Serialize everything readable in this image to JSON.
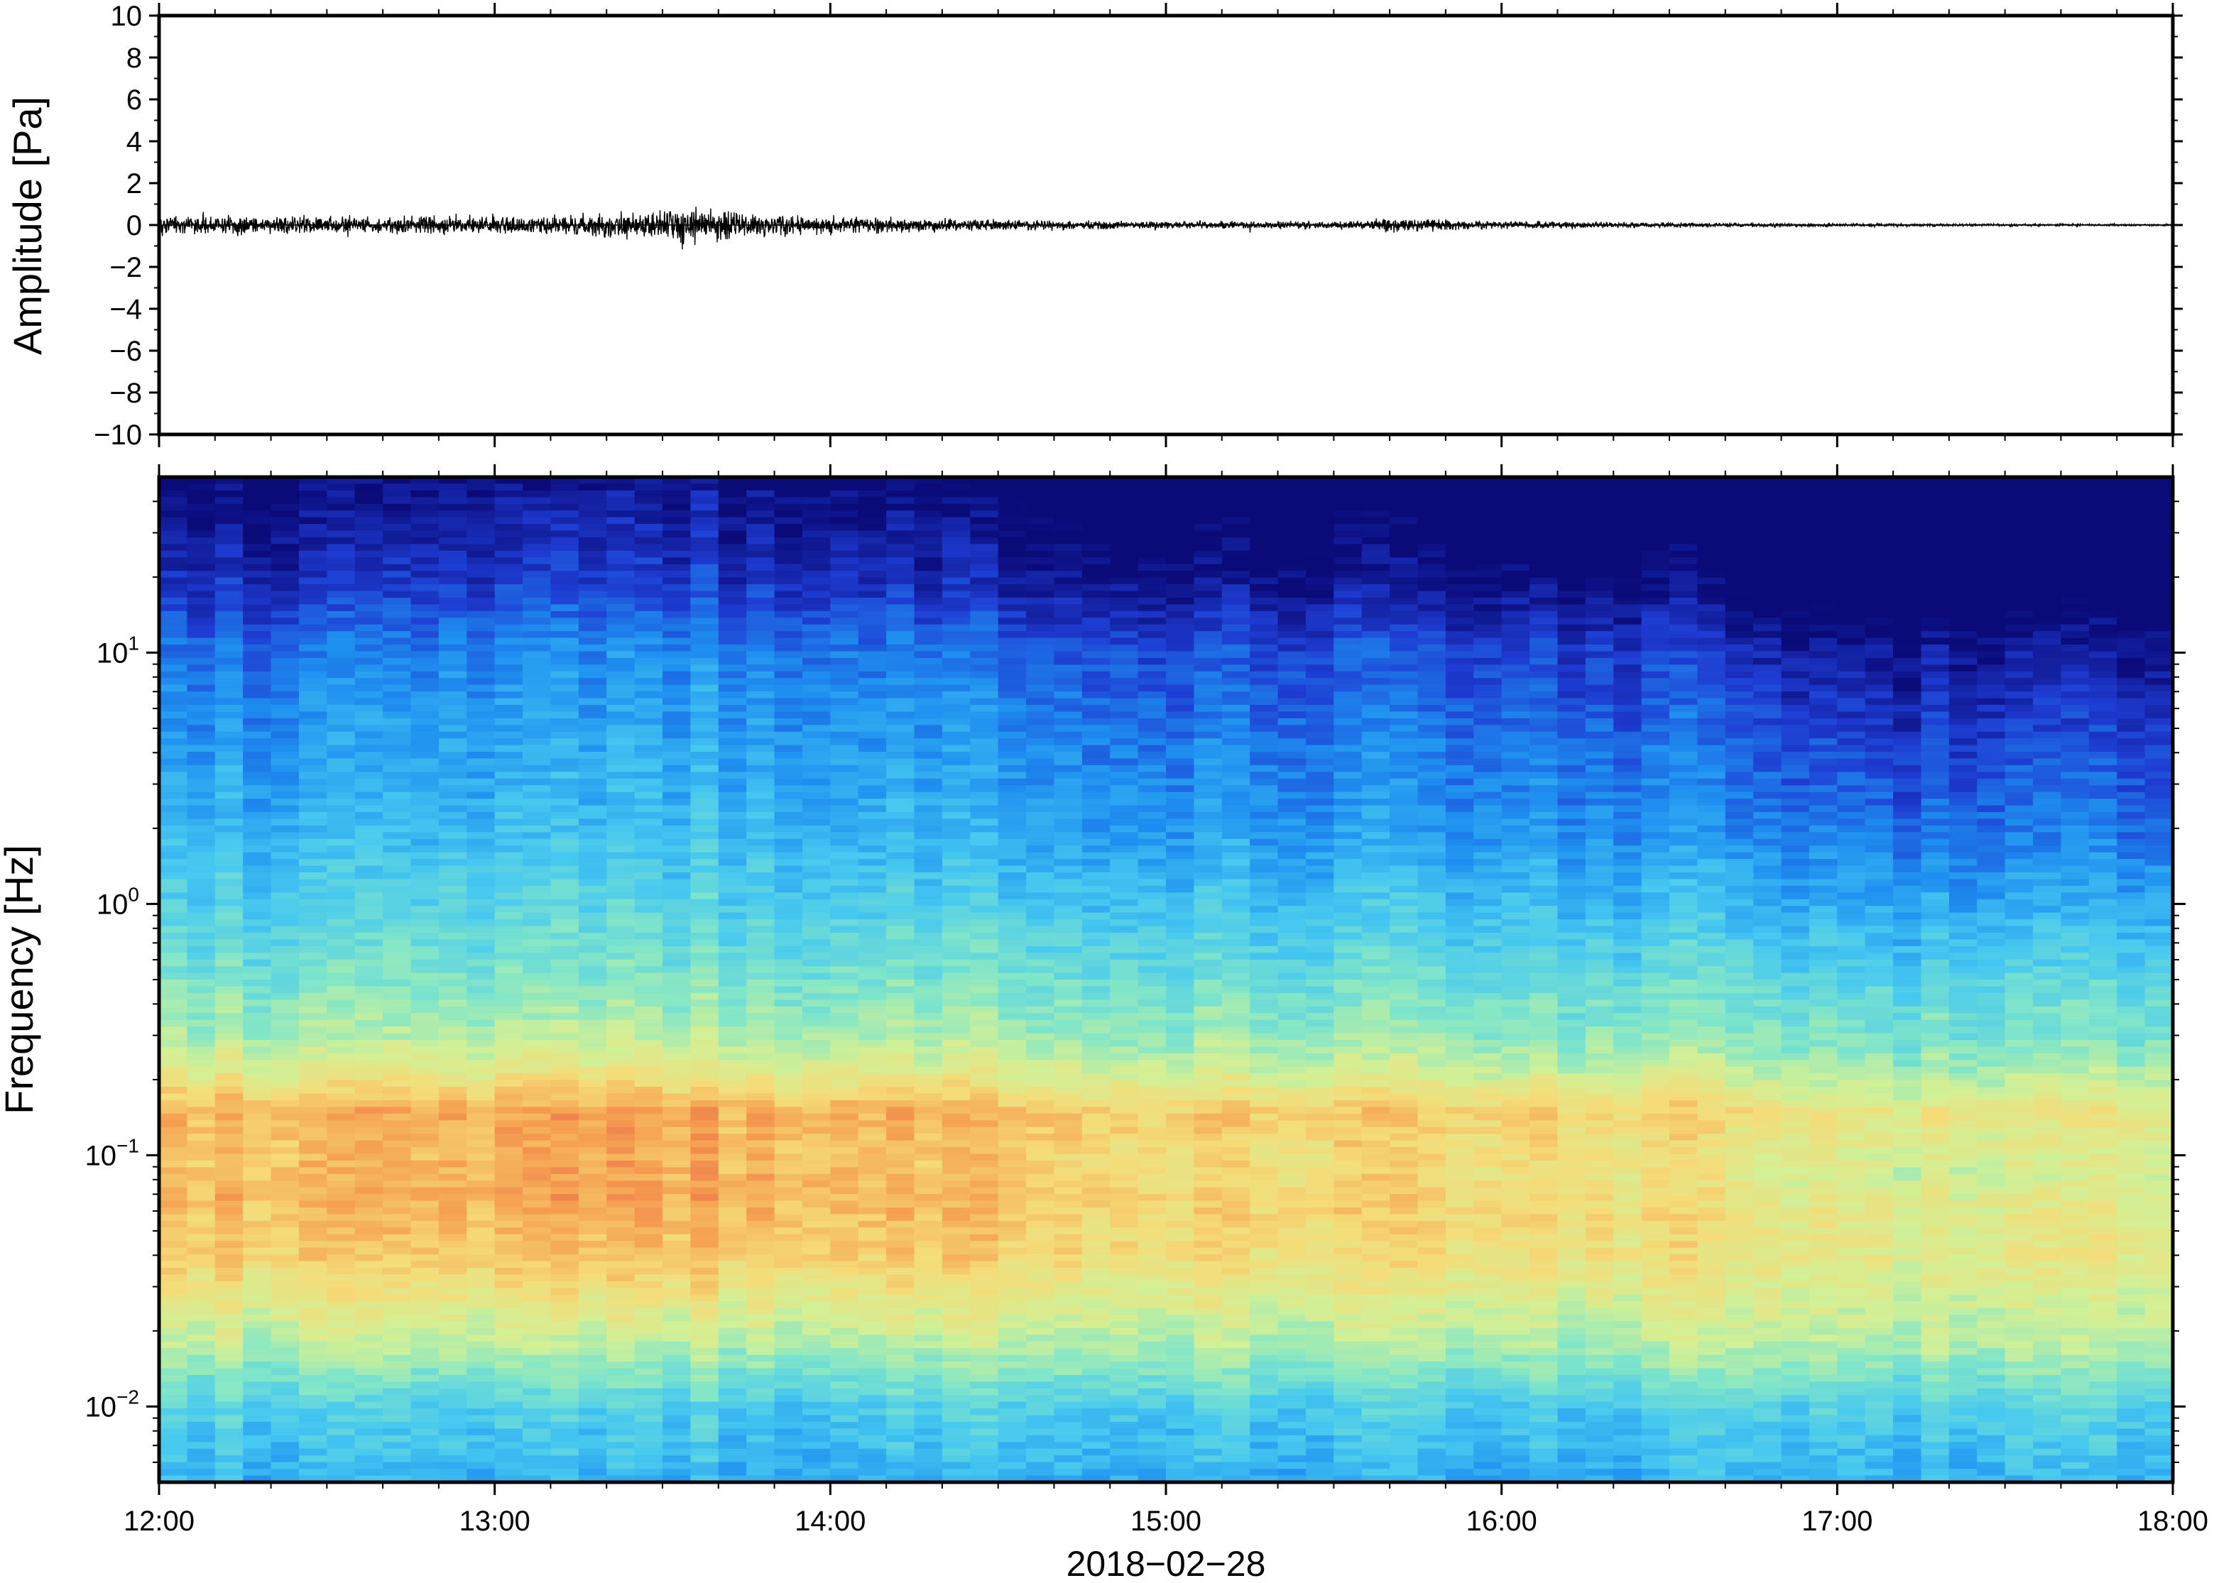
{
  "chart_data": [
    {
      "type": "line",
      "panel": "waveform",
      "ylabel": "Amplitude [Pa]",
      "ylim": [
        -10,
        10
      ],
      "y_ticks": [
        -10,
        -8,
        -6,
        -4,
        -2,
        0,
        2,
        4,
        6,
        8,
        10
      ],
      "y_tick_labels": [
        "−10",
        "−8",
        "−6",
        "−4",
        "−2",
        "0",
        "2",
        "4",
        "6",
        "8",
        "10"
      ],
      "xlim": [
        "2018-02-28T12:00",
        "2018-02-28T18:00"
      ],
      "grid": false,
      "series": [
        {
          "color": "#000000",
          "envelope_x": [
            "12:00",
            "12:30",
            "13:00",
            "13:15",
            "13:30",
            "13:32",
            "13:45",
            "14:00",
            "14:15",
            "14:30",
            "15:00",
            "15:30",
            "15:39",
            "16:00",
            "16:30",
            "17:00",
            "17:30",
            "18:00"
          ],
          "envelope_peak_pa": [
            0.6,
            0.6,
            0.6,
            0.7,
            1.0,
            1.3,
            0.8,
            0.6,
            0.45,
            0.35,
            0.25,
            0.22,
            0.45,
            0.25,
            0.15,
            0.1,
            0.08,
            0.06
          ]
        }
      ]
    },
    {
      "type": "heatmap",
      "panel": "spectrogram",
      "ylabel": "Frequency [Hz]",
      "yscale": "log",
      "ylim": [
        0.005,
        50
      ],
      "y_ticks": [
        0.01,
        0.1,
        1,
        10
      ],
      "y_tick_labels": [
        {
          "base": "10",
          "exp": "−2"
        },
        {
          "base": "10",
          "exp": "−1"
        },
        {
          "base": "10",
          "exp": "0"
        },
        {
          "base": "10",
          "exp": "1"
        }
      ],
      "x_ticks": [
        "12:00",
        "13:00",
        "14:00",
        "15:00",
        "16:00",
        "17:00",
        "18:00"
      ],
      "xlim": [
        "2018-02-28T12:00",
        "2018-02-28T18:00"
      ],
      "xlabel": "2018−02−28",
      "colormap": [
        "#0a0a78",
        "#1e3cd2",
        "#1e8ff0",
        "#46c8f0",
        "#82e6c8",
        "#d2f096",
        "#f5dc78",
        "#f5a050",
        "#e65046"
      ],
      "profile_freq_hz": [
        0.005,
        0.01,
        0.02,
        0.04,
        0.07,
        0.1,
        0.15,
        0.2,
        0.3,
        0.5,
        1,
        2,
        5,
        10,
        20,
        50
      ],
      "relative_power": [
        0.32,
        0.4,
        0.62,
        0.8,
        0.86,
        0.84,
        0.86,
        0.72,
        0.58,
        0.5,
        0.42,
        0.35,
        0.3,
        0.25,
        0.12,
        0.02
      ],
      "activity_times": [
        "12:00",
        "12:30",
        "13:00",
        "13:30",
        "14:00",
        "14:30",
        "15:00",
        "15:30",
        "16:00",
        "16:30",
        "16:45",
        "17:00",
        "17:30",
        "18:00"
      ],
      "activity_level": [
        0.85,
        0.9,
        0.95,
        1.0,
        0.95,
        0.8,
        0.7,
        0.75,
        0.7,
        0.65,
        0.45,
        0.4,
        0.38,
        0.35
      ]
    }
  ]
}
